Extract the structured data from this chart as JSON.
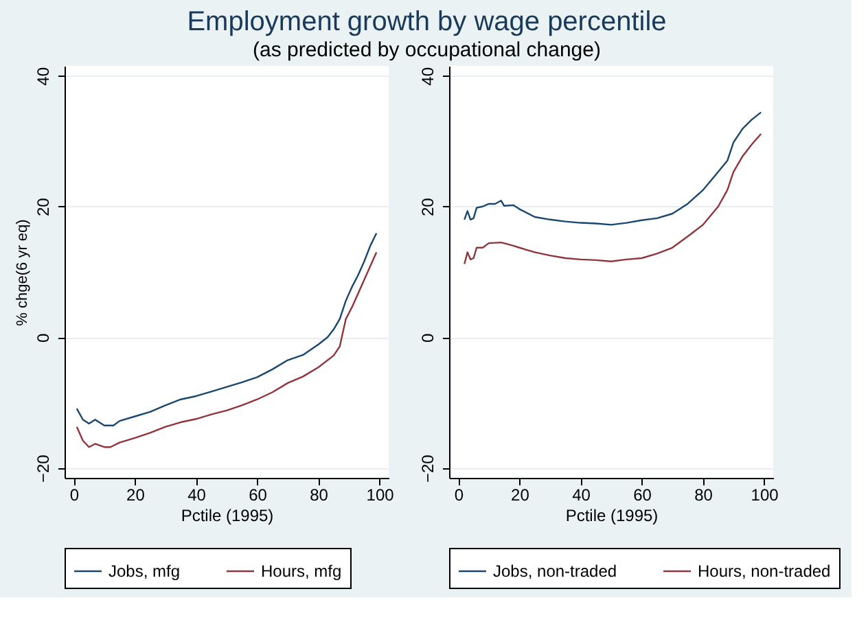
{
  "chart_data": [
    {
      "type": "line",
      "title": "Employment growth by wage percentile",
      "subtitle": "(as predicted by occupational change)",
      "xlabel": "Pctile (1995)",
      "ylabel": "% chge(6 yr eq)",
      "xlim": [
        -3,
        103
      ],
      "ylim": [
        -21.5,
        41.5
      ],
      "xticks": [
        0,
        20,
        40,
        60,
        80,
        100
      ],
      "yticks": [
        -20,
        0,
        20,
        40
      ],
      "grid": "y",
      "legend": "bottom",
      "line_style": "solid",
      "marker": "none",
      "series": [
        {
          "name": "Jobs, mfg",
          "color": "#1a476f",
          "x": [
            1,
            3,
            5,
            7,
            10,
            13,
            15,
            20,
            25,
            30,
            35,
            40,
            45,
            50,
            55,
            60,
            65,
            70,
            75,
            80,
            83,
            85,
            87,
            89,
            91,
            93,
            95,
            97,
            99
          ],
          "values": [
            -10.9,
            -12.6,
            -13.2,
            -12.6,
            -13.5,
            -13.5,
            -12.8,
            -12.1,
            -11.4,
            -10.4,
            -9.5,
            -9.0,
            -8.3,
            -7.6,
            -6.9,
            -6.1,
            -4.9,
            -3.5,
            -2.7,
            -1.1,
            0,
            1.2,
            2.8,
            5.6,
            7.7,
            9.5,
            11.6,
            14.0,
            15.9
          ]
        },
        {
          "name": "Hours, mfg",
          "color": "#90353b",
          "x": [
            1,
            3,
            5,
            7,
            10,
            12,
            15,
            20,
            25,
            30,
            35,
            40,
            45,
            50,
            55,
            60,
            65,
            70,
            75,
            80,
            85,
            87,
            89,
            91,
            93,
            95,
            97,
            99
          ],
          "values": [
            -13.7,
            -15.8,
            -16.8,
            -16.3,
            -16.8,
            -16.8,
            -16.1,
            -15.4,
            -14.6,
            -13.7,
            -13.0,
            -12.5,
            -11.8,
            -11.2,
            -10.4,
            -9.5,
            -8.4,
            -7.0,
            -6.0,
            -4.6,
            -2.8,
            -1.4,
            2.8,
            4.6,
            6.7,
            8.8,
            10.9,
            13.0
          ]
        }
      ]
    },
    {
      "type": "line",
      "xlabel": "Pctile (1995)",
      "xlim": [
        -3,
        103
      ],
      "ylim": [
        -21.5,
        41.5
      ],
      "xticks": [
        0,
        20,
        40,
        60,
        80,
        100
      ],
      "yticks": [
        -20,
        0,
        20,
        40
      ],
      "grid": "y",
      "legend": "bottom",
      "line_style": "solid",
      "marker": "none",
      "series": [
        {
          "name": "Jobs, non-traded",
          "color": "#1a476f",
          "x": [
            2,
            3,
            4,
            5,
            6,
            8,
            10,
            12,
            14,
            15,
            18,
            20,
            25,
            30,
            35,
            40,
            45,
            50,
            55,
            60,
            65,
            70,
            75,
            80,
            85,
            88,
            90,
            93,
            96,
            99
          ],
          "values": [
            18.0,
            19.3,
            18.0,
            18.2,
            19.8,
            20.0,
            20.4,
            20.4,
            20.9,
            20.1,
            20.2,
            19.6,
            18.4,
            18.0,
            17.7,
            17.5,
            17.4,
            17.2,
            17.5,
            17.9,
            18.2,
            18.9,
            20.4,
            22.5,
            25.3,
            27.0,
            29.8,
            31.9,
            33.3,
            34.4
          ]
        },
        {
          "name": "Hours, non-traded",
          "color": "#90353b",
          "x": [
            2,
            3,
            4,
            5,
            6,
            8,
            10,
            14,
            18,
            20,
            25,
            30,
            35,
            40,
            45,
            50,
            55,
            60,
            65,
            70,
            75,
            80,
            85,
            88,
            90,
            93,
            96,
            99
          ],
          "values": [
            11.2,
            13.0,
            11.9,
            12.1,
            13.7,
            13.7,
            14.4,
            14.5,
            14.0,
            13.7,
            13.0,
            12.5,
            12.1,
            11.9,
            11.8,
            11.6,
            11.9,
            12.1,
            12.8,
            13.7,
            15.4,
            17.2,
            20.0,
            22.5,
            25.3,
            27.7,
            29.5,
            31.1
          ]
        }
      ]
    }
  ]
}
